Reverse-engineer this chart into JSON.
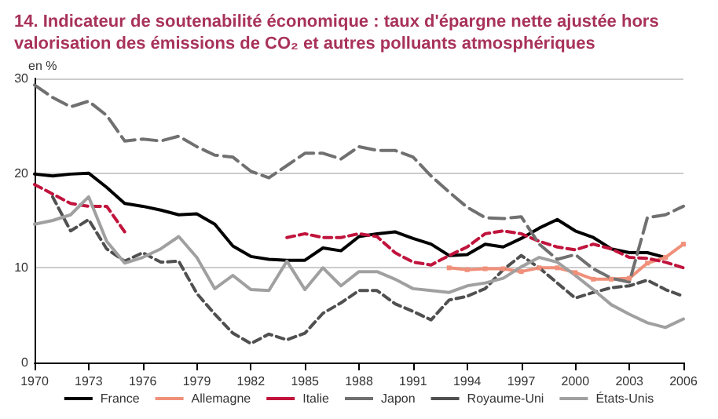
{
  "chart_data": {
    "type": "line",
    "title": "14. Indicateur de soutenabilité économique : taux d'épargne nette ajustée hors valorisation des émissions de CO₂ et autres polluants atmosphériques",
    "ylabel": "en %",
    "x": [
      1970,
      1971,
      1972,
      1973,
      1974,
      1975,
      1976,
      1977,
      1978,
      1979,
      1980,
      1981,
      1982,
      1983,
      1984,
      1985,
      1986,
      1987,
      1988,
      1989,
      1990,
      1991,
      1992,
      1993,
      1994,
      1995,
      1996,
      1997,
      1998,
      1999,
      2000,
      2001,
      2002,
      2003,
      2004,
      2005,
      2006
    ],
    "xlim": [
      1970,
      2006
    ],
    "xticks": [
      1970,
      1973,
      1976,
      1979,
      1982,
      1985,
      1988,
      1991,
      1994,
      1997,
      2000,
      2003,
      2006
    ],
    "ylim": [
      0,
      30
    ],
    "yticks": [
      0,
      10,
      20,
      30
    ],
    "grid": "y",
    "legend": "bottom",
    "marker": "none",
    "series": [
      {
        "name": "France",
        "color": "#000000",
        "line_style": "solid",
        "values": [
          19.9,
          19.7,
          19.9,
          20.0,
          18.5,
          16.8,
          16.5,
          16.1,
          15.6,
          15.7,
          14.6,
          12.3,
          11.2,
          10.9,
          10.8,
          10.8,
          12.1,
          11.8,
          13.3,
          13.6,
          13.8,
          13.1,
          12.5,
          11.3,
          11.4,
          12.5,
          12.2,
          13.1,
          14.2,
          15.1,
          13.9,
          13.2,
          12.0,
          11.6,
          11.6,
          11.1,
          null
        ]
      },
      {
        "name": "Allemagne",
        "color": "#f0907a",
        "line_style": "solid",
        "marker": "square",
        "values": [
          null,
          null,
          null,
          null,
          null,
          null,
          null,
          null,
          null,
          null,
          null,
          null,
          null,
          null,
          null,
          null,
          null,
          null,
          null,
          null,
          null,
          null,
          null,
          10.0,
          9.8,
          9.9,
          9.9,
          9.6,
          10.0,
          10.0,
          9.5,
          8.8,
          8.8,
          8.9,
          10.5,
          11.1,
          12.5
        ]
      },
      {
        "name": "Italie",
        "color": "#c0143c",
        "line_style": "dashed",
        "values": [
          18.8,
          17.8,
          16.8,
          16.5,
          16.5,
          13.8,
          null,
          null,
          null,
          null,
          null,
          null,
          null,
          null,
          13.2,
          13.6,
          13.2,
          13.2,
          13.6,
          13.3,
          11.6,
          10.6,
          10.3,
          11.3,
          12.2,
          13.6,
          13.9,
          13.6,
          12.8,
          12.2,
          11.9,
          12.5,
          12.0,
          11.1,
          11.0,
          10.6,
          10.0
        ]
      },
      {
        "name": "Japon",
        "color": "#707070",
        "line_style": "longdash",
        "values": [
          29.3,
          28.0,
          27.0,
          27.6,
          26.1,
          23.4,
          23.6,
          23.4,
          23.9,
          22.8,
          21.9,
          21.7,
          20.2,
          19.5,
          20.8,
          22.1,
          22.1,
          21.5,
          22.8,
          22.4,
          22.4,
          21.7,
          19.7,
          18.0,
          16.4,
          15.3,
          15.2,
          15.4,
          12.5,
          10.9,
          11.4,
          9.9,
          8.9,
          8.5,
          15.3,
          15.6,
          16.5
        ]
      },
      {
        "name": "Royaume-Uni",
        "color": "#505050",
        "line_style": "dashed",
        "values": [
          null,
          17.5,
          13.9,
          15.1,
          12.0,
          10.7,
          11.6,
          10.6,
          10.7,
          7.3,
          5.1,
          3.1,
          2.0,
          3.0,
          2.4,
          3.1,
          5.2,
          6.3,
          7.6,
          7.6,
          6.2,
          5.4,
          4.5,
          6.6,
          7.0,
          7.8,
          9.8,
          11.3,
          10.0,
          8.4,
          6.8,
          7.4,
          7.9,
          8.1,
          8.7,
          7.7,
          7.0
        ]
      },
      {
        "name": "États-Unis",
        "color": "#a0a0a0",
        "line_style": "solid",
        "values": [
          14.6,
          15.0,
          15.6,
          17.5,
          12.8,
          10.5,
          11.1,
          12.0,
          13.3,
          11.1,
          7.8,
          9.2,
          7.7,
          7.6,
          10.7,
          7.7,
          10.0,
          8.1,
          9.6,
          9.6,
          8.8,
          7.8,
          7.6,
          7.4,
          8.1,
          8.4,
          8.9,
          10.1,
          11.1,
          10.6,
          9.2,
          7.7,
          6.1,
          5.1,
          4.2,
          3.7,
          4.6
        ]
      }
    ]
  }
}
